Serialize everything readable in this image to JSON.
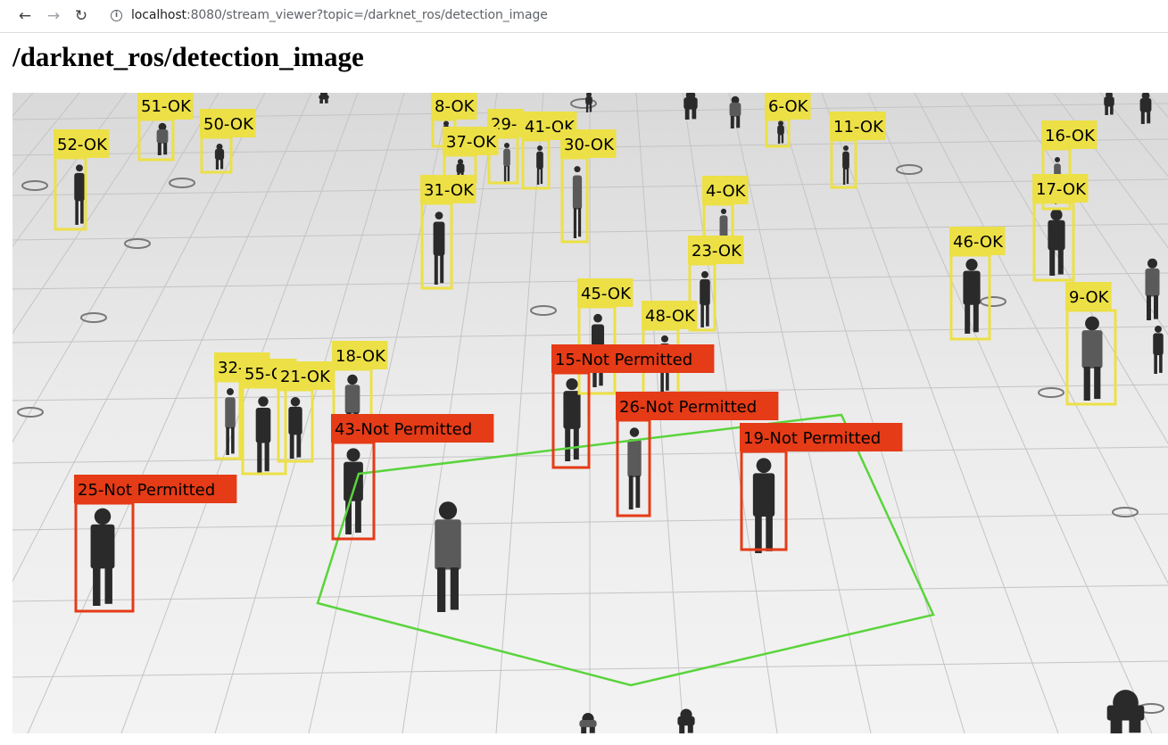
{
  "browser": {
    "back_icon": "arrow-left-icon",
    "forward_icon": "arrow-right-icon",
    "reload_icon": "reload-icon",
    "url_host": "localhost",
    "url_rest": ":8080/stream_viewer?topic=/darknet_ros/detection_image"
  },
  "page": {
    "title": "/darknet_ros/detection_image"
  },
  "stream": {
    "ok_color": "#ece046",
    "violation_color": "#e53b17",
    "zone_color": "#5ad43c",
    "detections": [
      {
        "label": "52-OK",
        "status": "ok"
      },
      {
        "label": "51-OK",
        "status": "ok"
      },
      {
        "label": "50-OK",
        "status": "ok"
      },
      {
        "label": "8-OK",
        "status": "ok"
      },
      {
        "label": "29-",
        "status": "ok"
      },
      {
        "label": "41-OK",
        "status": "ok"
      },
      {
        "label": "37-OK",
        "status": "ok"
      },
      {
        "label": "30-OK",
        "status": "ok"
      },
      {
        "label": "6-OK",
        "status": "ok"
      },
      {
        "label": "11-OK",
        "status": "ok"
      },
      {
        "label": "16-OK",
        "status": "ok"
      },
      {
        "label": "17-OK",
        "status": "ok"
      },
      {
        "label": "31-OK",
        "status": "ok"
      },
      {
        "label": "4-OK",
        "status": "ok"
      },
      {
        "label": "23-OK",
        "status": "ok"
      },
      {
        "label": "46-OK",
        "status": "ok"
      },
      {
        "label": "9-OK",
        "status": "ok"
      },
      {
        "label": "45-OK",
        "status": "ok"
      },
      {
        "label": "48-OK",
        "status": "ok"
      },
      {
        "label": "32-OK",
        "status": "ok"
      },
      {
        "label": "55-OK",
        "status": "ok"
      },
      {
        "label": "21-OK",
        "status": "ok"
      },
      {
        "label": "18-OK",
        "status": "ok"
      },
      {
        "label": "25-Not Permitted",
        "status": "violation"
      },
      {
        "label": "15-Not Permitted",
        "status": "violation"
      },
      {
        "label": "26-Not Permitted",
        "status": "violation"
      },
      {
        "label": "43-Not Permitted",
        "status": "violation"
      },
      {
        "label": "19-Not Permitted",
        "status": "violation"
      }
    ]
  }
}
